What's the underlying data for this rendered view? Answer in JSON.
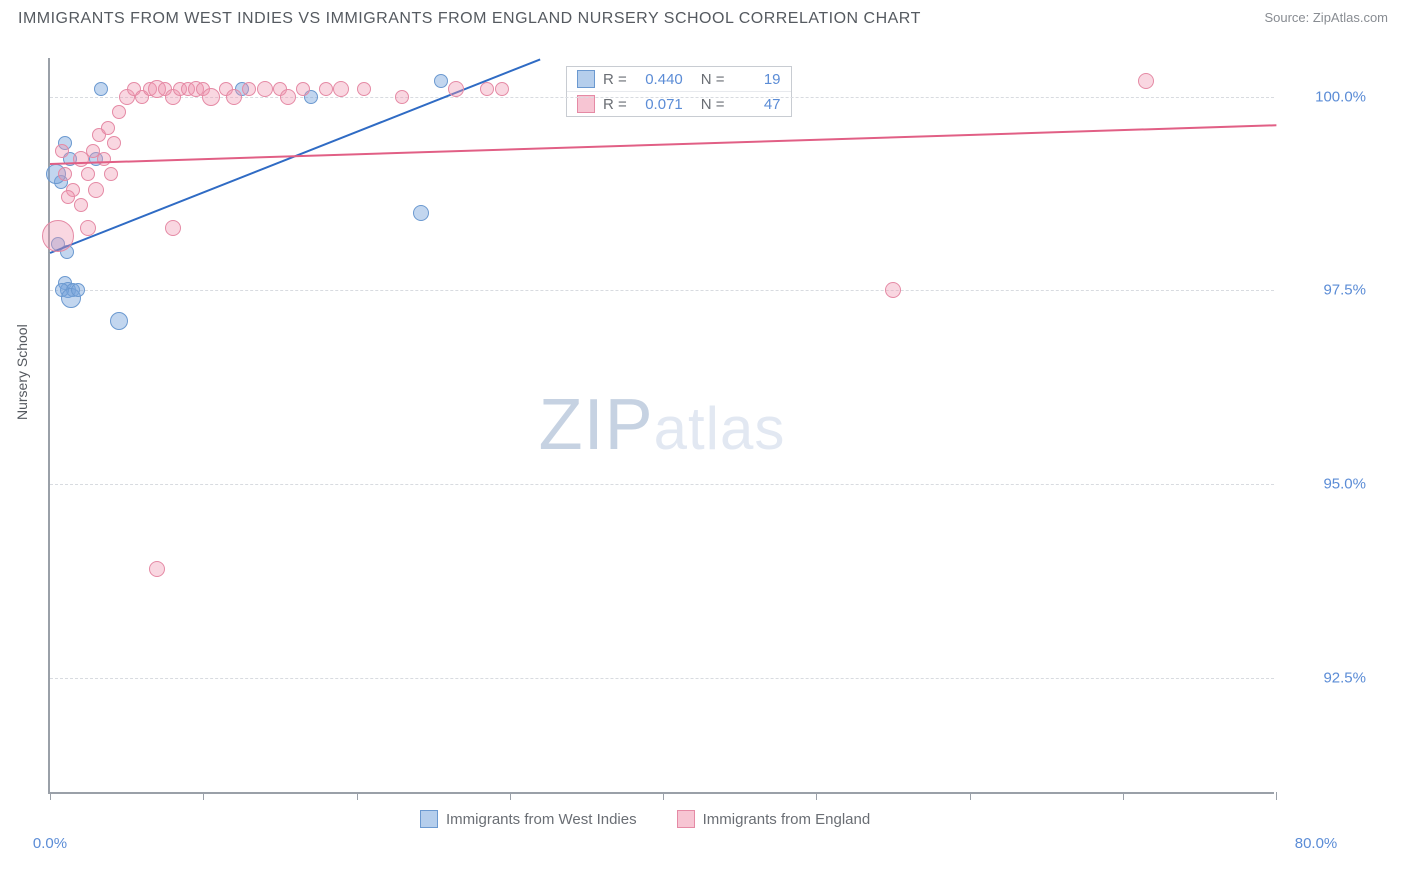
{
  "header": {
    "title": "IMMIGRANTS FROM WEST INDIES VS IMMIGRANTS FROM ENGLAND NURSERY SCHOOL CORRELATION CHART",
    "source": "Source: ZipAtlas.com"
  },
  "chart": {
    "type": "scatter",
    "ylabel": "Nursery School",
    "xlim": [
      0,
      80
    ],
    "ylim": [
      91.0,
      100.5
    ],
    "xticks": [
      0,
      10,
      20,
      30,
      40,
      50,
      60,
      70,
      80
    ],
    "xtick_labels": {
      "0": "0.0%",
      "80": "80.0%"
    },
    "yticks": [
      92.5,
      95.0,
      97.5,
      100.0
    ],
    "ytick_labels": [
      "92.5%",
      "95.0%",
      "97.5%",
      "100.0%"
    ],
    "grid_color": "#d8dbe0",
    "border_color": "#9aa0a8",
    "background_color": "#ffffff",
    "watermark": {
      "zip": "ZIP",
      "atlas": "atlas"
    },
    "series": [
      {
        "name": "Immigrants from West Indies",
        "color": "#78a5dc",
        "border": "#6b99d0",
        "line_color": "#2f6bc4",
        "R": "0.440",
        "N": "19",
        "trend": {
          "x1": 0,
          "y1": 98.0,
          "x2": 32,
          "y2": 100.5
        },
        "points": [
          {
            "x": 1.0,
            "y": 99.4,
            "r": 7
          },
          {
            "x": 1.3,
            "y": 99.2,
            "r": 7
          },
          {
            "x": 1.0,
            "y": 97.6,
            "r": 7
          },
          {
            "x": 1.2,
            "y": 97.5,
            "r": 8
          },
          {
            "x": 1.5,
            "y": 97.5,
            "r": 7
          },
          {
            "x": 0.8,
            "y": 97.5,
            "r": 7
          },
          {
            "x": 1.4,
            "y": 97.4,
            "r": 10
          },
          {
            "x": 1.8,
            "y": 97.5,
            "r": 7
          },
          {
            "x": 1.1,
            "y": 98.0,
            "r": 7
          },
          {
            "x": 0.5,
            "y": 98.1,
            "r": 7
          },
          {
            "x": 0.7,
            "y": 98.9,
            "r": 7
          },
          {
            "x": 3.0,
            "y": 99.2,
            "r": 7
          },
          {
            "x": 4.5,
            "y": 97.1,
            "r": 9
          },
          {
            "x": 12.5,
            "y": 100.1,
            "r": 7
          },
          {
            "x": 17.0,
            "y": 100.0,
            "r": 7
          },
          {
            "x": 24.2,
            "y": 98.5,
            "r": 8
          },
          {
            "x": 25.5,
            "y": 100.2,
            "r": 7
          },
          {
            "x": 3.3,
            "y": 100.1,
            "r": 7
          },
          {
            "x": 0.4,
            "y": 99.0,
            "r": 10
          }
        ]
      },
      {
        "name": "Immigrants from England",
        "color": "#f096af",
        "border": "#e58aa5",
        "line_color": "#e15f85",
        "R": "0.071",
        "N": "47",
        "trend": {
          "x1": 0,
          "y1": 99.15,
          "x2": 80,
          "y2": 99.65
        },
        "points": [
          {
            "x": 0.5,
            "y": 98.2,
            "r": 16
          },
          {
            "x": 1.0,
            "y": 99.0,
            "r": 7
          },
          {
            "x": 1.5,
            "y": 98.8,
            "r": 7
          },
          {
            "x": 2.0,
            "y": 99.2,
            "r": 8
          },
          {
            "x": 2.5,
            "y": 99.0,
            "r": 7
          },
          {
            "x": 2.8,
            "y": 99.3,
            "r": 7
          },
          {
            "x": 3.2,
            "y": 99.5,
            "r": 7
          },
          {
            "x": 3.5,
            "y": 99.2,
            "r": 7
          },
          {
            "x": 3.8,
            "y": 99.6,
            "r": 7
          },
          {
            "x": 4.5,
            "y": 99.8,
            "r": 7
          },
          {
            "x": 5.0,
            "y": 100.0,
            "r": 8
          },
          {
            "x": 5.5,
            "y": 100.1,
            "r": 7
          },
          {
            "x": 6.0,
            "y": 100.0,
            "r": 7
          },
          {
            "x": 6.5,
            "y": 100.1,
            "r": 7
          },
          {
            "x": 7.0,
            "y": 100.1,
            "r": 9
          },
          {
            "x": 7.5,
            "y": 100.1,
            "r": 7
          },
          {
            "x": 8.0,
            "y": 100.0,
            "r": 8
          },
          {
            "x": 8.5,
            "y": 100.1,
            "r": 7
          },
          {
            "x": 9.0,
            "y": 100.1,
            "r": 7
          },
          {
            "x": 9.5,
            "y": 100.1,
            "r": 8
          },
          {
            "x": 10.0,
            "y": 100.1,
            "r": 7
          },
          {
            "x": 10.5,
            "y": 100.0,
            "r": 9
          },
          {
            "x": 11.5,
            "y": 100.1,
            "r": 7
          },
          {
            "x": 12.0,
            "y": 100.0,
            "r": 8
          },
          {
            "x": 13.0,
            "y": 100.1,
            "r": 7
          },
          {
            "x": 14.0,
            "y": 100.1,
            "r": 8
          },
          {
            "x": 15.0,
            "y": 100.1,
            "r": 7
          },
          {
            "x": 15.5,
            "y": 100.0,
            "r": 8
          },
          {
            "x": 16.5,
            "y": 100.1,
            "r": 7
          },
          {
            "x": 18.0,
            "y": 100.1,
            "r": 7
          },
          {
            "x": 19.0,
            "y": 100.1,
            "r": 8
          },
          {
            "x": 20.5,
            "y": 100.1,
            "r": 7
          },
          {
            "x": 23.0,
            "y": 100.0,
            "r": 7
          },
          {
            "x": 26.5,
            "y": 100.1,
            "r": 8
          },
          {
            "x": 28.5,
            "y": 100.1,
            "r": 7
          },
          {
            "x": 29.5,
            "y": 100.1,
            "r": 7
          },
          {
            "x": 8.0,
            "y": 98.3,
            "r": 8
          },
          {
            "x": 7.0,
            "y": 93.9,
            "r": 8
          },
          {
            "x": 2.0,
            "y": 98.6,
            "r": 7
          },
          {
            "x": 2.5,
            "y": 98.3,
            "r": 8
          },
          {
            "x": 1.2,
            "y": 98.7,
            "r": 7
          },
          {
            "x": 0.8,
            "y": 99.3,
            "r": 7
          },
          {
            "x": 3.0,
            "y": 98.8,
            "r": 8
          },
          {
            "x": 4.0,
            "y": 99.0,
            "r": 7
          },
          {
            "x": 55.0,
            "y": 97.5,
            "r": 8
          },
          {
            "x": 71.5,
            "y": 100.2,
            "r": 8
          },
          {
            "x": 4.2,
            "y": 99.4,
            "r": 7
          }
        ]
      }
    ],
    "legend_items": [
      {
        "swatch": "blue",
        "label": "Immigrants from West Indies"
      },
      {
        "swatch": "pink",
        "label": "Immigrants from England"
      }
    ]
  }
}
